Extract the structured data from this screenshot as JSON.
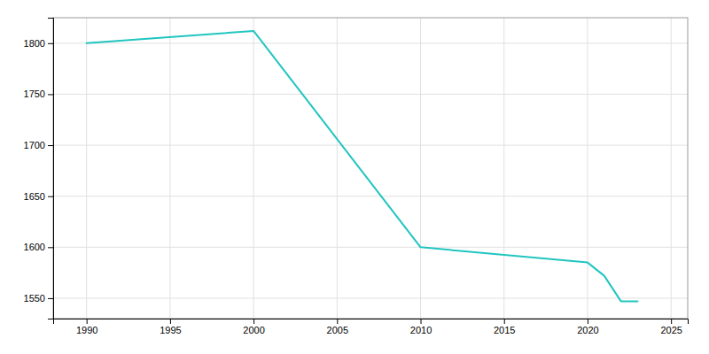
{
  "chart_data": {
    "type": "line",
    "x": [
      1990,
      2000,
      2010,
      2020,
      2021,
      2022,
      2023
    ],
    "values": [
      1800,
      1812,
      1600,
      1585,
      1572,
      1547,
      1547
    ],
    "color": "#20C5C0",
    "xlim": [
      1988,
      2026
    ],
    "ylim": [
      1530,
      1825
    ],
    "xticks": [
      1990,
      1995,
      2000,
      2005,
      2010,
      2015,
      2020,
      2025
    ],
    "yticks": [
      1550,
      1600,
      1650,
      1700,
      1750,
      1800
    ],
    "grid": true
  }
}
